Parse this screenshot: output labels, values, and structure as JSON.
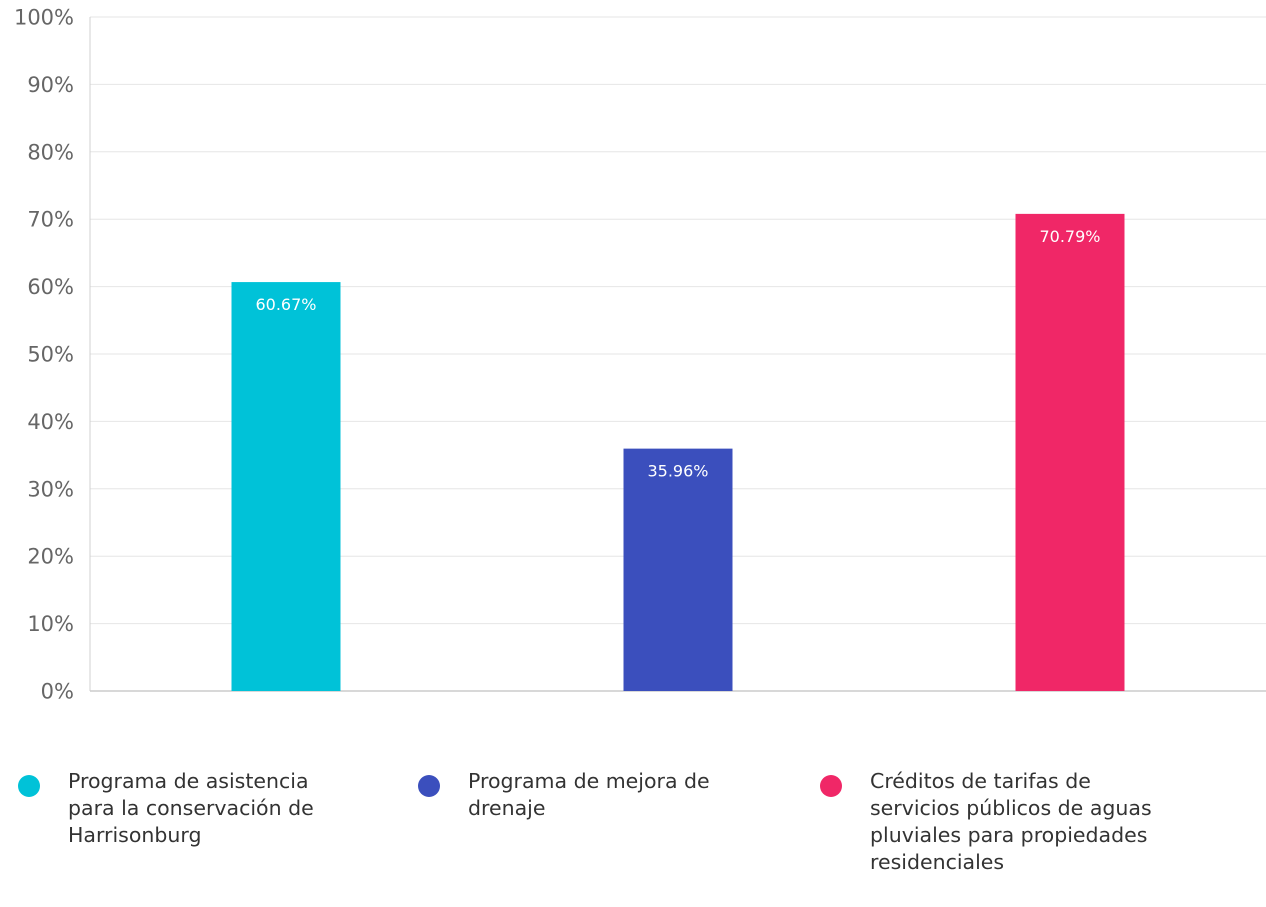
{
  "chart_data": {
    "type": "bar",
    "categories": [
      "Programa de asistencia para la conservación de Harrisonburg",
      "Programa de mejora de drenaje",
      "Créditos de tarifas de servicios públicos de aguas pluviales para propiedades residenciales"
    ],
    "values": [
      60.67,
      35.96,
      70.79
    ],
    "data_labels": [
      "60.67%",
      "35.96%",
      "70.79%"
    ],
    "colors": [
      "#00C2D8",
      "#3B4FBD",
      "#F02767"
    ],
    "ylim": [
      0,
      100
    ],
    "yticks": [
      0,
      10,
      20,
      30,
      40,
      50,
      60,
      70,
      80,
      90,
      100
    ],
    "ytick_labels": [
      "0%",
      "10%",
      "20%",
      "30%",
      "40%",
      "50%",
      "60%",
      "70%",
      "80%",
      "90%",
      "100%"
    ],
    "grid": true,
    "legend_position": "bottom",
    "title": "",
    "xlabel": "",
    "ylabel": ""
  },
  "legend": {
    "items": [
      {
        "label": "Programa de asistencia para la conservación de Harrisonburg",
        "color": "#00C2D8"
      },
      {
        "label": "Programa de mejora de drenaje",
        "color": "#3B4FBD"
      },
      {
        "label": "Créditos de tarifas de servicios públicos de aguas pluviales para propiedades residenciales",
        "color": "#F02767"
      }
    ]
  }
}
